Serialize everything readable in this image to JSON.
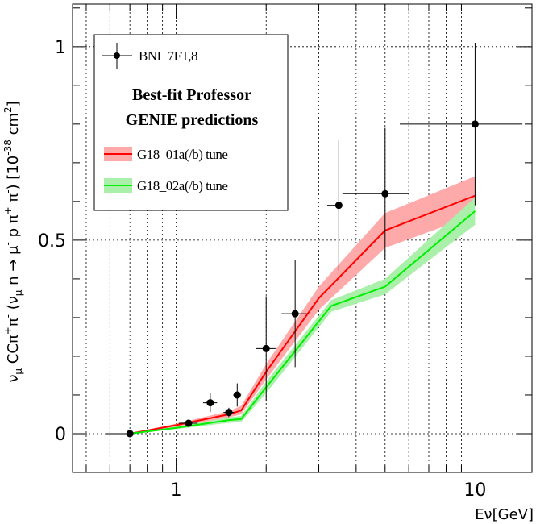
{
  "chart_data": {
    "type": "line",
    "xscale": "log",
    "xlim": [
      0.45,
      15.5
    ],
    "ylim": [
      -0.1,
      1.11
    ],
    "grid": true,
    "xlabel": "Eν[GeV]",
    "ylabel_parts": {
      "nu": "ν",
      "mu": "μ",
      "cc": " CCπ",
      "plus": "+",
      "pi": "π",
      "minus": "-",
      "open": " (ν",
      "mid": " n → μ",
      "mid2": " p π",
      "mid3": " π",
      "close": ") [10",
      "exp": "-38",
      "unit": " cm",
      "two": "2",
      "end": "]"
    },
    "x_ticks": [
      {
        "value": 1,
        "label": "1"
      },
      {
        "value": 10,
        "label": "10"
      }
    ],
    "y_ticks": [
      {
        "value": 0,
        "label": "0"
      },
      {
        "value": 0.5,
        "label": "0.5"
      },
      {
        "value": 1,
        "label": "1"
      }
    ],
    "data_points": {
      "name": "BNL 7FT,8",
      "points": [
        {
          "x": 0.7,
          "y": 0.0,
          "xerr": [
            0.12,
            0.0
          ],
          "yerr": 0.0
        },
        {
          "x": 1.1,
          "y": 0.027,
          "xerr": [
            0.08,
            0.08
          ],
          "yerr": 0.0
        },
        {
          "x": 1.3,
          "y": 0.08,
          "xerr": [
            0.07,
            0.07
          ],
          "yerr": 0.024
        },
        {
          "x": 1.5,
          "y": 0.055,
          "xerr": [
            0.06,
            0.06
          ],
          "yerr": 0.012
        },
        {
          "x": 1.6,
          "y": 0.1,
          "xerr": [
            0.05,
            0.05
          ],
          "yerr": 0.03
        },
        {
          "x": 2.0,
          "y": 0.22,
          "xerr": [
            0.15,
            0.15
          ],
          "yerr": 0.135
        },
        {
          "x": 2.5,
          "y": 0.31,
          "xerr": [
            0.25,
            0.25
          ],
          "yerr": 0.138
        },
        {
          "x": 3.5,
          "y": 0.59,
          "xerr": [
            0.3,
            0.0
          ],
          "yerr": 0.168
        },
        {
          "x": 5.0,
          "y": 0.62,
          "xerr": [
            1.4,
            1.0
          ],
          "yerr": 0.17
        },
        {
          "x": 10.0,
          "y": 0.8,
          "xerr": [
            4.4,
            4.4
          ],
          "yerr": 0.21
        }
      ]
    },
    "series": [
      {
        "name": "G18_01a(/b) tune",
        "color": "#ff0000",
        "band_color": "#ffaaaa",
        "points": [
          {
            "x": 0.7,
            "y": 0.0,
            "lo": 0.0,
            "hi": 0.0
          },
          {
            "x": 1.0,
            "y": 0.022,
            "lo": 0.018,
            "hi": 0.026
          },
          {
            "x": 1.5,
            "y": 0.05,
            "lo": 0.042,
            "hi": 0.058
          },
          {
            "x": 1.65,
            "y": 0.06,
            "lo": 0.05,
            "hi": 0.072
          },
          {
            "x": 2.0,
            "y": 0.16,
            "lo": 0.14,
            "hi": 0.18
          },
          {
            "x": 3.0,
            "y": 0.35,
            "lo": 0.32,
            "hi": 0.38
          },
          {
            "x": 5.0,
            "y": 0.525,
            "lo": 0.48,
            "hi": 0.57
          },
          {
            "x": 10.0,
            "y": 0.615,
            "lo": 0.565,
            "hi": 0.665
          }
        ]
      },
      {
        "name": "G18_02a(/b) tune",
        "color": "#00ee00",
        "band_color": "#aaf0aa",
        "points": [
          {
            "x": 0.7,
            "y": 0.0,
            "lo": 0.0,
            "hi": 0.0
          },
          {
            "x": 1.0,
            "y": 0.015,
            "lo": 0.012,
            "hi": 0.018
          },
          {
            "x": 1.5,
            "y": 0.035,
            "lo": 0.028,
            "hi": 0.042
          },
          {
            "x": 1.65,
            "y": 0.038,
            "lo": 0.03,
            "hi": 0.046
          },
          {
            "x": 2.0,
            "y": 0.12,
            "lo": 0.105,
            "hi": 0.135
          },
          {
            "x": 3.3,
            "y": 0.33,
            "lo": 0.315,
            "hi": 0.345
          },
          {
            "x": 5.0,
            "y": 0.38,
            "lo": 0.36,
            "hi": 0.4
          },
          {
            "x": 10.0,
            "y": 0.575,
            "lo": 0.54,
            "hi": 0.61
          }
        ]
      }
    ],
    "legend": {
      "placement": "top-left",
      "data_label": "BNL 7FT,8",
      "heading_line1": "Best-fit Professor",
      "heading_line2": "GENIE predictions",
      "tune1": "G18_01a(/b) tune",
      "tune2": "G18_02a(/b) tune"
    }
  }
}
